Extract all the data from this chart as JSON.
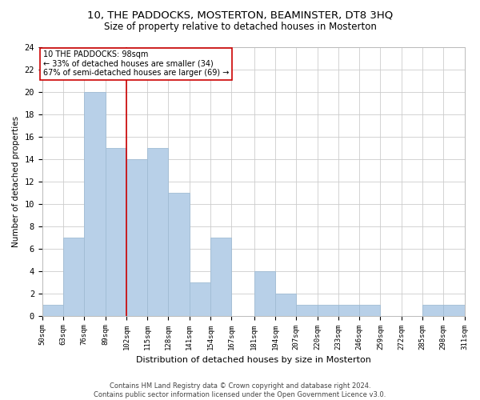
{
  "title": "10, THE PADDOCKS, MOSTERTON, BEAMINSTER, DT8 3HQ",
  "subtitle": "Size of property relative to detached houses in Mosterton",
  "xlabel": "Distribution of detached houses by size in Mosterton",
  "ylabel": "Number of detached properties",
  "bin_edges": [
    50,
    63,
    76,
    89,
    102,
    115,
    128,
    141,
    154,
    167,
    181,
    194,
    207,
    220,
    233,
    246,
    259,
    272,
    285,
    298,
    311
  ],
  "bin_counts": [
    1,
    7,
    20,
    15,
    14,
    15,
    11,
    3,
    7,
    0,
    4,
    2,
    1,
    1,
    1,
    1,
    0,
    0,
    1,
    1
  ],
  "bar_color": "#b8d0e8",
  "bar_edge_color": "#a0bcd4",
  "grid_color": "#cccccc",
  "ref_line_x": 102,
  "ref_line_color": "#cc0000",
  "annotation_text": "10 THE PADDOCKS: 98sqm\n← 33% of detached houses are smaller (34)\n67% of semi-detached houses are larger (69) →",
  "annotation_box_edge": "#cc0000",
  "footer_text": "Contains HM Land Registry data © Crown copyright and database right 2024.\nContains public sector information licensed under the Open Government Licence v3.0.",
  "ylim": [
    0,
    24
  ],
  "ytick_step": 2,
  "tick_labels": [
    "50sqm",
    "63sqm",
    "76sqm",
    "89sqm",
    "102sqm",
    "115sqm",
    "128sqm",
    "141sqm",
    "154sqm",
    "167sqm",
    "181sqm",
    "194sqm",
    "207sqm",
    "220sqm",
    "233sqm",
    "246sqm",
    "259sqm",
    "272sqm",
    "285sqm",
    "298sqm",
    "311sqm"
  ]
}
